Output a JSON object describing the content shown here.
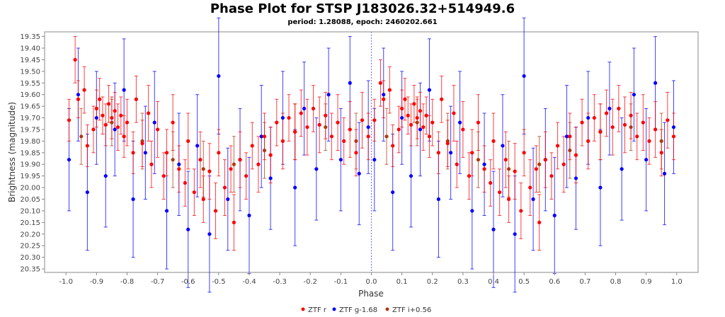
{
  "chart_data": {
    "type": "scatter",
    "title": "Phase Plot for STSP J183026.32+514949.6",
    "subtitle": "period: 1.28088, epoch: 2460202.661",
    "xlabel": "Phase",
    "ylabel": "Brightness (magnitude)",
    "xlim": [
      -1.07,
      1.07
    ],
    "ylim": [
      20.365,
      19.33
    ],
    "y_inverted": true,
    "x_ticks": [
      "-1.0",
      "-0.9",
      "-0.8",
      "-0.7",
      "-0.6",
      "-0.5",
      "-0.4",
      "-0.3",
      "-0.2",
      "-0.1",
      "0.0",
      "0.1",
      "0.2",
      "0.3",
      "0.4",
      "0.5",
      "0.6",
      "0.7",
      "0.8",
      "0.9",
      "1.0"
    ],
    "x_tick_values": [
      -1.0,
      -0.9,
      -0.8,
      -0.7,
      -0.6,
      -0.5,
      -0.4,
      -0.3,
      -0.2,
      -0.1,
      0.0,
      0.1,
      0.2,
      0.3,
      0.4,
      0.5,
      0.6,
      0.7,
      0.8,
      0.9,
      1.0
    ],
    "y_ticks": [
      "19.35",
      "19.40",
      "19.45",
      "19.50",
      "19.55",
      "19.60",
      "19.65",
      "19.70",
      "19.75",
      "19.80",
      "19.85",
      "19.90",
      "19.95",
      "20.00",
      "20.05",
      "20.10",
      "20.15",
      "20.20",
      "20.25",
      "20.30",
      "20.35"
    ],
    "y_tick_values": [
      19.35,
      19.4,
      19.45,
      19.5,
      19.55,
      19.6,
      19.65,
      19.7,
      19.75,
      19.8,
      19.85,
      19.9,
      19.95,
      20.0,
      20.05,
      20.1,
      20.15,
      20.2,
      20.25,
      20.3,
      20.35
    ],
    "grid": false,
    "legend_position": "bottom-center",
    "colors": {
      "ztf_r": "#ff0000",
      "ztf_g": "#0000ff",
      "ztf_i": "#b03a10",
      "zero_line": "#6f6fff",
      "axis": "#888888"
    },
    "series": [
      {
        "name": "ZTF r",
        "color": "#ff0000",
        "points": [
          [
            -0.99,
            19.71,
            0.09
          ],
          [
            -0.97,
            19.45,
            0.1
          ],
          [
            -0.96,
            19.62,
            0.08
          ],
          [
            -0.94,
            19.58,
            0.1
          ],
          [
            -0.93,
            19.82,
            0.09
          ],
          [
            -0.91,
            19.75,
            0.1
          ],
          [
            -0.9,
            19.66,
            0.08
          ],
          [
            -0.89,
            19.62,
            0.09
          ],
          [
            -0.88,
            19.69,
            0.08
          ],
          [
            -0.87,
            19.73,
            0.09
          ],
          [
            -0.86,
            19.64,
            0.08
          ],
          [
            -0.85,
            19.7,
            0.09
          ],
          [
            -0.84,
            19.67,
            0.08
          ],
          [
            -0.83,
            19.74,
            0.1
          ],
          [
            -0.82,
            19.69,
            0.08
          ],
          [
            -0.81,
            19.78,
            0.09
          ],
          [
            -0.8,
            19.72,
            0.1
          ],
          [
            -0.78,
            19.85,
            0.09
          ],
          [
            -0.77,
            19.62,
            0.1
          ],
          [
            -0.75,
            19.81,
            0.1
          ],
          [
            -0.73,
            19.68,
            0.12
          ],
          [
            -0.72,
            19.9,
            0.1
          ],
          [
            -0.7,
            19.75,
            0.12
          ],
          [
            -0.68,
            19.95,
            0.1
          ],
          [
            -0.67,
            19.85,
            0.1
          ],
          [
            -0.65,
            19.72,
            0.12
          ],
          [
            -0.63,
            19.92,
            0.1
          ],
          [
            -0.61,
            19.98,
            0.1
          ],
          [
            -0.6,
            19.8,
            0.12
          ],
          [
            -0.58,
            20.02,
            0.1
          ],
          [
            -0.56,
            19.88,
            0.12
          ],
          [
            -0.55,
            20.05,
            0.1
          ],
          [
            -0.53,
            19.93,
            0.12
          ],
          [
            -0.51,
            20.1,
            0.12
          ],
          [
            -0.5,
            19.85,
            0.1
          ],
          [
            -0.48,
            20.0,
            0.12
          ],
          [
            -0.46,
            19.92,
            0.1
          ],
          [
            -0.45,
            20.15,
            0.12
          ],
          [
            -0.43,
            19.88,
            0.12
          ],
          [
            -0.41,
            19.95,
            0.1
          ],
          [
            -0.39,
            19.82,
            0.1
          ],
          [
            -0.37,
            19.9,
            0.12
          ],
          [
            -0.35,
            19.78,
            0.1
          ],
          [
            -0.33,
            19.86,
            0.12
          ],
          [
            -0.31,
            19.72,
            0.1
          ],
          [
            -0.29,
            19.8,
            0.12
          ],
          [
            -0.27,
            19.7,
            0.1
          ],
          [
            -0.25,
            19.76,
            0.12
          ],
          [
            -0.23,
            19.68,
            0.1
          ],
          [
            -0.21,
            19.74,
            0.12
          ],
          [
            -0.19,
            19.66,
            0.1
          ],
          [
            -0.17,
            19.73,
            0.12
          ],
          [
            -0.15,
            19.69,
            0.1
          ],
          [
            -0.13,
            19.78,
            0.1
          ],
          [
            -0.11,
            19.72,
            0.12
          ],
          [
            -0.09,
            19.8,
            0.1
          ],
          [
            -0.07,
            19.75,
            0.12
          ],
          [
            -0.05,
            19.85,
            0.1
          ],
          [
            -0.03,
            19.71,
            0.12
          ],
          [
            -0.01,
            19.78,
            0.1
          ],
          [
            0.01,
            19.71,
            0.09
          ],
          [
            0.03,
            19.55,
            0.1
          ],
          [
            0.04,
            19.62,
            0.08
          ],
          [
            0.06,
            19.58,
            0.1
          ],
          [
            0.07,
            19.82,
            0.09
          ],
          [
            0.09,
            19.75,
            0.1
          ],
          [
            0.1,
            19.66,
            0.08
          ],
          [
            0.11,
            19.62,
            0.09
          ],
          [
            0.12,
            19.69,
            0.08
          ],
          [
            0.13,
            19.73,
            0.09
          ],
          [
            0.14,
            19.64,
            0.08
          ],
          [
            0.15,
            19.7,
            0.09
          ],
          [
            0.16,
            19.67,
            0.08
          ],
          [
            0.17,
            19.74,
            0.1
          ],
          [
            0.18,
            19.69,
            0.08
          ],
          [
            0.19,
            19.78,
            0.09
          ],
          [
            0.2,
            19.72,
            0.1
          ],
          [
            0.22,
            19.85,
            0.09
          ],
          [
            0.23,
            19.62,
            0.1
          ],
          [
            0.25,
            19.81,
            0.1
          ],
          [
            0.27,
            19.68,
            0.12
          ],
          [
            0.28,
            19.9,
            0.1
          ],
          [
            0.3,
            19.75,
            0.12
          ],
          [
            0.32,
            19.95,
            0.1
          ],
          [
            0.33,
            19.85,
            0.1
          ],
          [
            0.35,
            19.72,
            0.12
          ],
          [
            0.37,
            19.92,
            0.1
          ],
          [
            0.39,
            19.98,
            0.1
          ],
          [
            0.4,
            19.8,
            0.12
          ],
          [
            0.42,
            20.02,
            0.1
          ],
          [
            0.44,
            19.88,
            0.12
          ],
          [
            0.45,
            20.05,
            0.1
          ],
          [
            0.47,
            19.93,
            0.12
          ],
          [
            0.49,
            20.1,
            0.12
          ],
          [
            0.5,
            19.85,
            0.1
          ],
          [
            0.52,
            20.0,
            0.12
          ],
          [
            0.54,
            19.92,
            0.1
          ],
          [
            0.55,
            20.15,
            0.12
          ],
          [
            0.57,
            19.88,
            0.12
          ],
          [
            0.59,
            19.95,
            0.1
          ],
          [
            0.61,
            19.82,
            0.1
          ],
          [
            0.63,
            19.9,
            0.12
          ],
          [
            0.65,
            19.78,
            0.1
          ],
          [
            0.67,
            19.86,
            0.12
          ],
          [
            0.69,
            19.72,
            0.1
          ],
          [
            0.71,
            19.8,
            0.12
          ],
          [
            0.73,
            19.7,
            0.1
          ],
          [
            0.75,
            19.76,
            0.12
          ],
          [
            0.77,
            19.68,
            0.1
          ],
          [
            0.79,
            19.74,
            0.12
          ],
          [
            0.81,
            19.66,
            0.1
          ],
          [
            0.83,
            19.73,
            0.12
          ],
          [
            0.85,
            19.69,
            0.1
          ],
          [
            0.87,
            19.78,
            0.1
          ],
          [
            0.89,
            19.72,
            0.12
          ],
          [
            0.91,
            19.8,
            0.1
          ],
          [
            0.93,
            19.75,
            0.12
          ],
          [
            0.95,
            19.85,
            0.1
          ],
          [
            0.97,
            19.71,
            0.12
          ],
          [
            0.99,
            19.78,
            0.1
          ]
        ]
      },
      {
        "name": "ZTF g-1.68",
        "color": "#0000ff",
        "points": [
          [
            -0.99,
            19.88,
            0.22
          ],
          [
            -0.96,
            19.6,
            0.2
          ],
          [
            -0.93,
            20.02,
            0.25
          ],
          [
            -0.9,
            19.7,
            0.2
          ],
          [
            -0.87,
            19.95,
            0.22
          ],
          [
            -0.84,
            19.75,
            0.2
          ],
          [
            -0.81,
            19.58,
            0.22
          ],
          [
            -0.78,
            20.05,
            0.25
          ],
          [
            -0.74,
            19.85,
            0.2
          ],
          [
            -0.71,
            19.72,
            0.22
          ],
          [
            -0.67,
            20.1,
            0.25
          ],
          [
            -0.63,
            19.9,
            0.22
          ],
          [
            -0.6,
            20.18,
            0.25
          ],
          [
            -0.57,
            19.82,
            0.22
          ],
          [
            -0.53,
            20.2,
            0.25
          ],
          [
            -0.5,
            19.52,
            0.25
          ],
          [
            -0.47,
            20.05,
            0.22
          ],
          [
            -0.43,
            19.88,
            0.22
          ],
          [
            -0.4,
            20.12,
            0.25
          ],
          [
            -0.36,
            19.78,
            0.22
          ],
          [
            -0.33,
            19.96,
            0.22
          ],
          [
            -0.29,
            19.7,
            0.2
          ],
          [
            -0.25,
            20.0,
            0.25
          ],
          [
            -0.22,
            19.66,
            0.2
          ],
          [
            -0.18,
            19.92,
            0.22
          ],
          [
            -0.14,
            19.6,
            0.2
          ],
          [
            -0.1,
            19.88,
            0.22
          ],
          [
            -0.07,
            19.55,
            0.2
          ],
          [
            -0.04,
            19.94,
            0.22
          ],
          [
            -0.01,
            19.74,
            0.2
          ],
          [
            0.01,
            19.88,
            0.22
          ],
          [
            0.04,
            19.6,
            0.2
          ],
          [
            0.07,
            20.02,
            0.25
          ],
          [
            0.1,
            19.7,
            0.2
          ],
          [
            0.13,
            19.95,
            0.22
          ],
          [
            0.16,
            19.75,
            0.2
          ],
          [
            0.19,
            19.58,
            0.22
          ],
          [
            0.22,
            20.05,
            0.25
          ],
          [
            0.26,
            19.85,
            0.2
          ],
          [
            0.29,
            19.72,
            0.22
          ],
          [
            0.33,
            20.1,
            0.25
          ],
          [
            0.37,
            19.9,
            0.22
          ],
          [
            0.4,
            20.18,
            0.25
          ],
          [
            0.43,
            19.82,
            0.22
          ],
          [
            0.47,
            20.2,
            0.25
          ],
          [
            0.5,
            19.52,
            0.25
          ],
          [
            0.53,
            20.05,
            0.22
          ],
          [
            0.57,
            19.88,
            0.22
          ],
          [
            0.6,
            20.12,
            0.25
          ],
          [
            0.64,
            19.78,
            0.22
          ],
          [
            0.67,
            19.96,
            0.22
          ],
          [
            0.71,
            19.7,
            0.2
          ],
          [
            0.75,
            20.0,
            0.25
          ],
          [
            0.78,
            19.66,
            0.2
          ],
          [
            0.82,
            19.92,
            0.22
          ],
          [
            0.86,
            19.6,
            0.2
          ],
          [
            0.9,
            19.88,
            0.22
          ],
          [
            0.93,
            19.55,
            0.2
          ],
          [
            0.96,
            19.94,
            0.22
          ],
          [
            0.99,
            19.74,
            0.2
          ]
        ]
      },
      {
        "name": "ZTF i+0.56",
        "color": "#b03a10",
        "points": [
          [
            -0.95,
            19.78,
            0.12
          ],
          [
            -0.85,
            19.72,
            0.1
          ],
          [
            -0.75,
            19.8,
            0.12
          ],
          [
            -0.65,
            19.88,
            0.12
          ],
          [
            -0.55,
            19.92,
            0.12
          ],
          [
            -0.45,
            19.9,
            0.12
          ],
          [
            -0.35,
            19.84,
            0.12
          ],
          [
            -0.25,
            19.76,
            0.12
          ],
          [
            -0.15,
            19.74,
            0.1
          ],
          [
            -0.05,
            19.8,
            0.12
          ],
          [
            0.05,
            19.78,
            0.12
          ],
          [
            0.15,
            19.72,
            0.1
          ],
          [
            0.25,
            19.8,
            0.12
          ],
          [
            0.35,
            19.88,
            0.12
          ],
          [
            0.45,
            19.92,
            0.12
          ],
          [
            0.55,
            19.9,
            0.12
          ],
          [
            0.65,
            19.84,
            0.12
          ],
          [
            0.75,
            19.76,
            0.12
          ],
          [
            0.85,
            19.74,
            0.1
          ],
          [
            0.95,
            19.8,
            0.12
          ]
        ]
      }
    ]
  }
}
